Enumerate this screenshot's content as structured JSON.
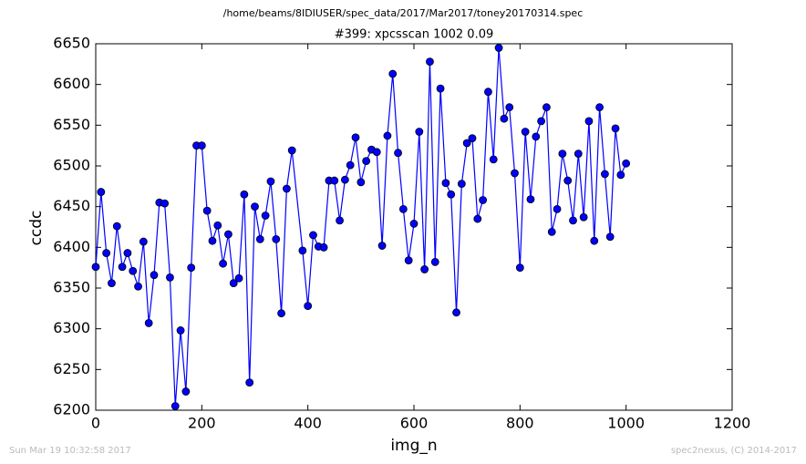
{
  "chart_data": {
    "type": "line",
    "title": "/home/beams/8IDIUSER/spec_data/2017/Mar2017/toney20170314.spec",
    "subtitle": "#399: xpcsscan 1002 0.09",
    "x_label": "img_n",
    "y_label": "ccdc",
    "footer_left": "Sun Mar 19 10:32:58 2017",
    "footer_right": "spec2nexus, (C) 2014-2017",
    "color": "#0000ff",
    "marker_edge": "#000000",
    "x": [
      0,
      10,
      20,
      30,
      40,
      50,
      60,
      70,
      80,
      90,
      100,
      110,
      120,
      130,
      140,
      150,
      160,
      170,
      180,
      190,
      200,
      210,
      220,
      230,
      240,
      250,
      260,
      270,
      280,
      290,
      300,
      310,
      320,
      330,
      340,
      350,
      360,
      370,
      390,
      400,
      410,
      420,
      430,
      440,
      450,
      460,
      470,
      480,
      490,
      500,
      510,
      520,
      530,
      540,
      550,
      560,
      570,
      580,
      590,
      600,
      610,
      620,
      630,
      640,
      650,
      660,
      670,
      680,
      690,
      700,
      710,
      720,
      730,
      740,
      750,
      760,
      770,
      780,
      790,
      800,
      810,
      820,
      830,
      840,
      850,
      860,
      870,
      880,
      890,
      900,
      910,
      920,
      930,
      940,
      950,
      960,
      970,
      980,
      990,
      1000
    ],
    "values": [
      6376,
      6468,
      6393,
      6356,
      6426,
      6376,
      6393,
      6371,
      6352,
      6407,
      6307,
      6366,
      6455,
      6454,
      6363,
      6205,
      6298,
      6223,
      6375,
      6525,
      6525,
      6445,
      6408,
      6427,
      6380,
      6416,
      6356,
      6362,
      6465,
      6234,
      6450,
      6410,
      6439,
      6481,
      6410,
      6319,
      6472,
      6519,
      6396,
      6328,
      6415,
      6401,
      6400,
      6482,
      6482,
      6433,
      6483,
      6501,
      6535,
      6480,
      6506,
      6520,
      6517,
      6402,
      6537,
      6613,
      6516,
      6447,
      6384,
      6429,
      6542,
      6373,
      6628,
      6382,
      6595,
      6479,
      6465,
      6320,
      6478,
      6528,
      6534,
      6435,
      6458,
      6591,
      6508,
      6645,
      6558,
      6572,
      6491,
      6375,
      6542,
      6459,
      6536,
      6555,
      6572,
      6419,
      6447,
      6515,
      6482,
      6433,
      6515,
      6437,
      6555,
      6408,
      6572,
      6490,
      6413,
      6546,
      6489,
      6503
    ],
    "xlim": [
      0,
      1200
    ],
    "xticks": [
      0,
      200,
      400,
      600,
      800,
      1000,
      1200
    ],
    "ylim": [
      6200,
      6650
    ],
    "yticks": [
      6200,
      6250,
      6300,
      6350,
      6400,
      6450,
      6500,
      6550,
      6600,
      6650
    ]
  }
}
